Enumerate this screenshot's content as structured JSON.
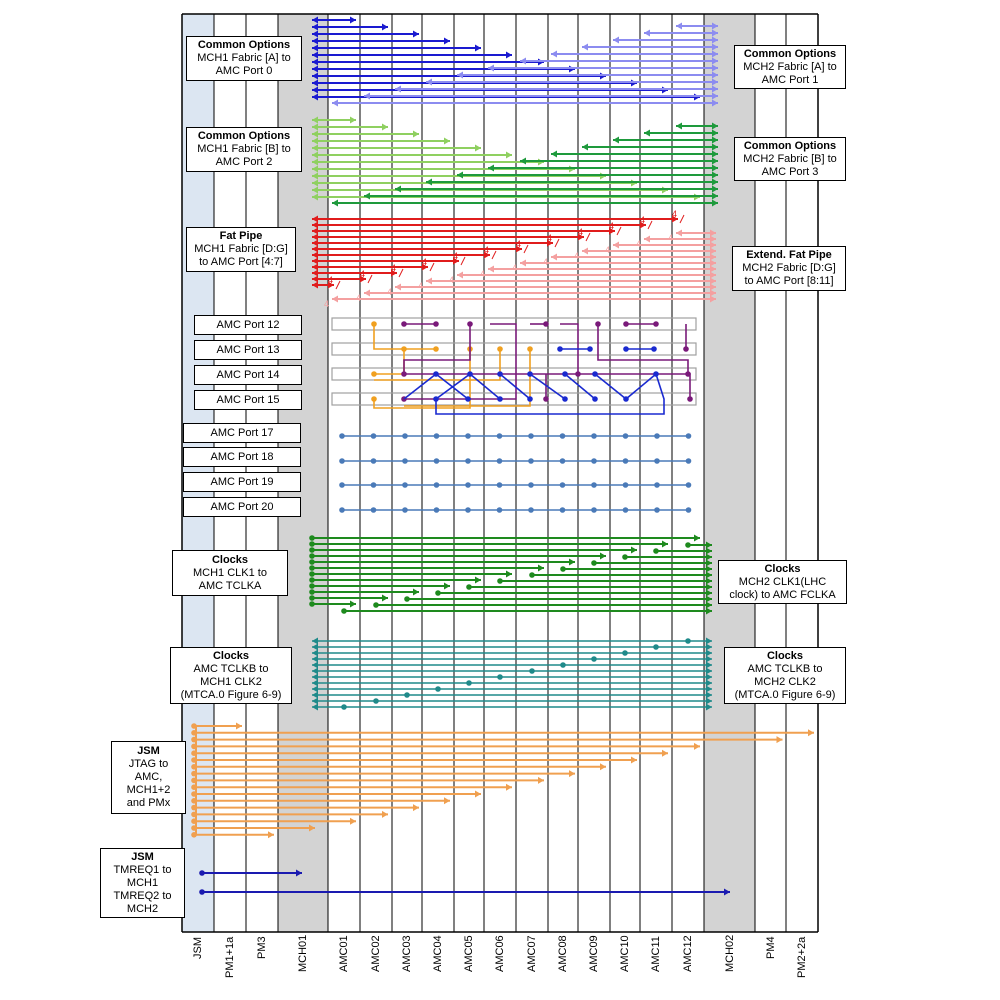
{
  "columns": [
    "JSM",
    "PM1+1a",
    "PM3",
    "MCH01",
    "AMC01",
    "AMC02",
    "AMC03",
    "AMC04",
    "AMC05",
    "AMC06",
    "AMC07",
    "AMC08",
    "AMC09",
    "AMC10",
    "AMC11",
    "AMC12",
    "MCH02",
    "PM4",
    "PM2+2a"
  ],
  "colors": {
    "fabric_a_dark": "#1a1ad0",
    "fabric_a_light": "#8c8cf0",
    "fabric_b_dark": "#1e9a3c",
    "fabric_b_light": "#8fd060",
    "fat_pipe_dark": "#e01c1c",
    "fat_pipe_light": "#f4a0a0",
    "port_orange": "#f0a020",
    "port_purple": "#7a1a7a",
    "port_blue": "#1a2ad0",
    "port_steel": "#4a7ab8",
    "clk1": "#1e8a1e",
    "clk2": "#1f8a8a",
    "jsm_orange": "#f0a050",
    "tmreq": "#1a1ab0",
    "jsm_column": "#dce6f2",
    "mch_column": "#d3d3d3"
  },
  "fat_pipe_marker": "4",
  "labels": {
    "common_a1": {
      "title": "Common Options",
      "body": "MCH1 Fabric [A] to\nAMC Port 0"
    },
    "common_a2": {
      "title": "Common Options",
      "body": "MCH2 Fabric [A] to\nAMC Port 1"
    },
    "common_b1": {
      "title": "Common Options",
      "body": "MCH1 Fabric [B] to\nAMC Port 2"
    },
    "common_b2": {
      "title": "Common Options",
      "body": "MCH2 Fabric [B] to\nAMC Port 3"
    },
    "fat_pipe": {
      "title": "Fat Pipe",
      "body": "MCH1 Fabric [D:G]\nto AMC Port [4:7]"
    },
    "ext_fat": {
      "title": "Extend. Fat Pipe",
      "body": "MCH2 Fabric [D:G]\nto AMC Port  [8:11]"
    },
    "port12": "AMC Port 12",
    "port13": "AMC Port 13",
    "port14": "AMC Port 14",
    "port15": "AMC Port 15",
    "port17": "AMC Port 17",
    "port18": "AMC Port 18",
    "port19": "AMC Port 19",
    "port20": "AMC Port 20",
    "clocks1": {
      "title": "Clocks",
      "body": "MCH1 CLK1 to\nAMC TCLKA"
    },
    "clocks2": {
      "title": "Clocks",
      "body": "MCH2 CLK1(LHC\nclock) to AMC FCLKA"
    },
    "clocks3": {
      "title": "Clocks",
      "body": "AMC TCLKB to\nMCH1 CLK2\n(MTCA.0 Figure 6-9)"
    },
    "clocks4": {
      "title": "Clocks",
      "body": "AMC TCLKB to\nMCH2 CLK2\n(MTCA.0 Figure 6-9)"
    },
    "jsm1": {
      "title": "JSM",
      "body": "JTAG to\nAMC,\nMCH1+2\nand PMx"
    },
    "jsm2": {
      "title": "JSM",
      "body": "TMREQ1 to\nMCH1\nTMREQ2 to\nMCH2"
    }
  }
}
